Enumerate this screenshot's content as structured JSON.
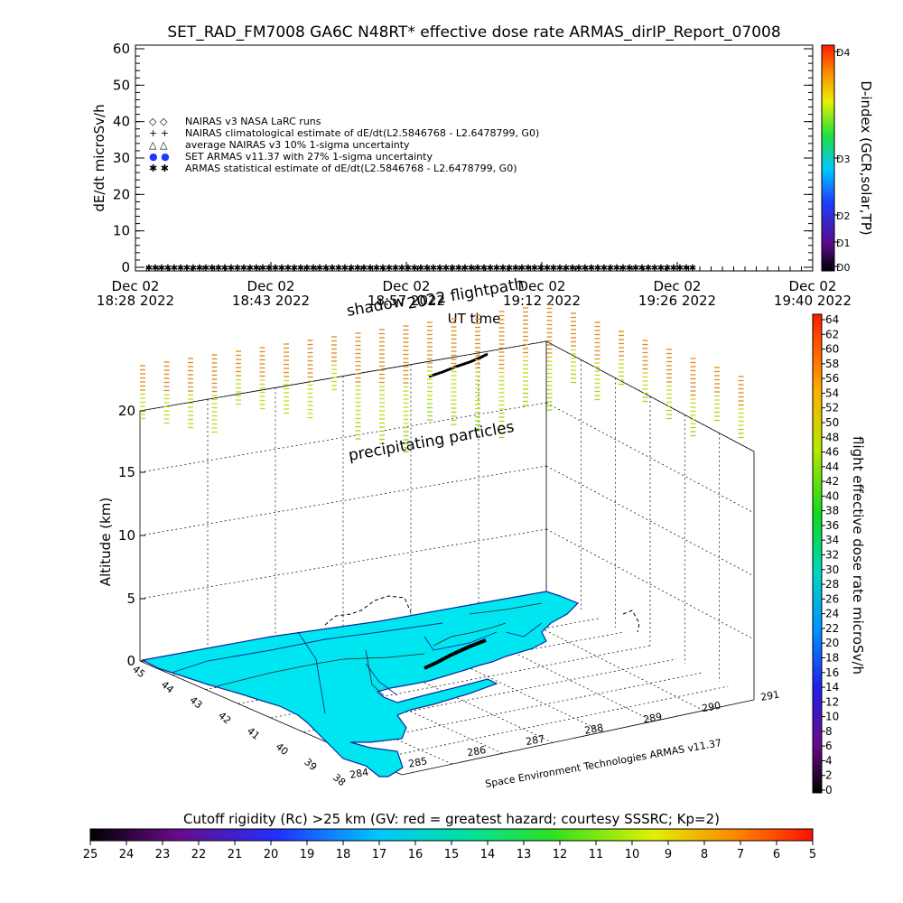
{
  "top_chart": {
    "title": "SET_RAD_FM7008  GA6C N48RT* effective dose rate ARMAS_dirIP_Report_07008",
    "ylabel": "dE/dt microSv/h",
    "xlabel": "UT time",
    "y_ticks": [
      "0",
      "10",
      "20",
      "30",
      "40",
      "50",
      "60"
    ],
    "x_ticks": [
      {
        "line1": "Dec 02",
        "line2": "18:28 2022"
      },
      {
        "line1": "Dec 02",
        "line2": "18:43 2022"
      },
      {
        "line1": "Dec 02",
        "line2": "18:57 2022"
      },
      {
        "line1": "Dec 02",
        "line2": "19:12 2022"
      },
      {
        "line1": "Dec 02",
        "line2": "19:26 2022"
      },
      {
        "line1": "Dec 02",
        "line2": "19:40 2022"
      }
    ],
    "legend": [
      {
        "symbol": "◇ ◇",
        "label": "NAIRAS v3 NASA LaRC runs"
      },
      {
        "symbol": "+ +",
        "label": "NAIRAS climatological estimate of dE/dt(L2.5846768 - L2.6478799, G0)"
      },
      {
        "symbol": "△ △",
        "label": "average NAIRAS v3 10% 1-sigma uncertainty"
      },
      {
        "symbol": "● ●",
        "label": "SET ARMAS v11.37 with 27% 1-sigma uncertainty"
      },
      {
        "symbol": "✱ ✱",
        "label": "ARMAS statistical estimate of dE/dt(L2.5846768 - L2.6478799, G0)"
      }
    ],
    "dindex_label": "D-index (GCR,solar,TP)",
    "dindex_ticks": [
      "D0",
      "D1",
      "D2",
      "D3",
      "D4"
    ]
  },
  "chart_data": [
    {
      "type": "scatter",
      "title": "SET_RAD_FM7008  GA6C N48RT* effective dose rate ARMAS_dirIP_Report_07008",
      "xlabel": "UT time",
      "ylabel": "dE/dt microSv/h",
      "ylim": [
        0,
        60
      ],
      "x_range": [
        "Dec 02 18:28 2022",
        "Dec 02 19:40 2022"
      ],
      "series": [
        {
          "name": "ARMAS statistical estimate of dE/dt(L2.5846768 - L2.6478799, G0)",
          "values_description_free": true,
          "y_value": 0,
          "x_from": "Dec 02 18:28 2022",
          "x_to": "Dec 02 19:26 2022"
        }
      ]
    }
  ],
  "bottom_chart": {
    "annot_shadow": "shadow",
    "annot_flightpath": "2022 flightpath",
    "annot_particles": "precipitating particles",
    "zlabel": "Altitude (km)",
    "z_ticks": [
      "0",
      "5",
      "10",
      "15",
      "20"
    ],
    "lat_ticks": [
      "45",
      "44",
      "43",
      "42",
      "41",
      "40",
      "39",
      "38"
    ],
    "lon_ticks": [
      "284",
      "285",
      "286",
      "287",
      "288",
      "289",
      "290",
      "291"
    ],
    "credit": "Space Environment Technologies ARMAS v11.37",
    "dose_colorbar_label": "flight effective dose rate microSv/h",
    "dose_ticks": [
      "0",
      "2",
      "4",
      "6",
      "8",
      "10",
      "12",
      "14",
      "16",
      "18",
      "20",
      "22",
      "24",
      "26",
      "28",
      "30",
      "32",
      "34",
      "36",
      "38",
      "40",
      "42",
      "44",
      "46",
      "48",
      "50",
      "52",
      "54",
      "56",
      "58",
      "60",
      "62",
      "64"
    ],
    "cutoff_label": "Cutoff rigidity (Rc) >25 km (GV: red = greatest hazard; courtesy SSSRC; Kp=2)",
    "cutoff_ticks": [
      "25",
      "24",
      "23",
      "22",
      "21",
      "20",
      "19",
      "18",
      "17",
      "16",
      "15",
      "14",
      "13",
      "12",
      "11",
      "10",
      "9",
      "8",
      "7",
      "6",
      "5"
    ]
  },
  "colors": {
    "map_fill": "#00e6f0",
    "map_line": "#0a2a9a",
    "particle_orange": "#e08a1e",
    "particle_yellow": "#c8d820",
    "particle_green": "#9ad81a"
  }
}
